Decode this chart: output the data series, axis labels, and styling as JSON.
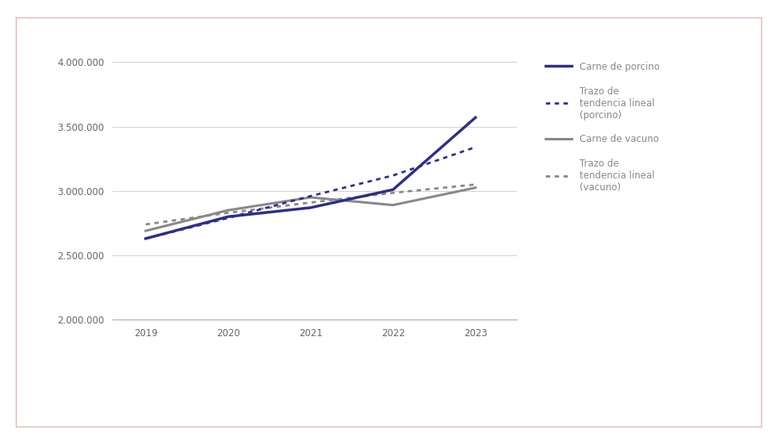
{
  "years": [
    2019,
    2020,
    2021,
    2022,
    2023
  ],
  "porcino": [
    2630000,
    2800000,
    2870000,
    3010000,
    3570000
  ],
  "vacuno": [
    2690000,
    2850000,
    2950000,
    2890000,
    3025000
  ],
  "porcino_trend": [
    2630000,
    2790000,
    2960000,
    3120000,
    3340000
  ],
  "vacuno_trend": [
    2740000,
    2830000,
    2910000,
    2985000,
    3050000
  ],
  "color_porcino": "#2e2e8a",
  "color_vacuno": "#888888",
  "ylim": [
    2000000,
    4000000
  ],
  "yticks": [
    2000000,
    2500000,
    3000000,
    3500000,
    4000000
  ],
  "legend_labels": [
    "Carne de porcino",
    "Trazo de\ntendencia lineal\n(porcino)",
    "Carne de vacuno",
    "Trazo de\ntendencia lineal\n(vacuno)"
  ],
  "background_color": "#ffffff",
  "border_color": "#e8b4b4",
  "outer_bg": "#ffffff",
  "xlim_left": 2018.6,
  "xlim_right": 2023.5
}
